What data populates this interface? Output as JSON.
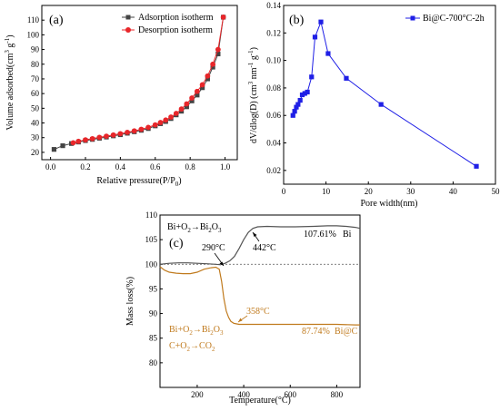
{
  "chart_data": [
    {
      "type": "line",
      "panel_label": "(a)",
      "xlabel": "Relative pressure(P/P",
      "xlabel_sub": "0",
      "xlabel_end": ")",
      "ylabel": "Volume adsorbed(cm",
      "ylabel_sup1": "3",
      "ylabel_mid": " g",
      "ylabel_sup2": "-1",
      "ylabel_end": ")",
      "xlim": [
        -0.05,
        1.07
      ],
      "ylim": [
        15,
        120
      ],
      "xticks": [
        "0.0",
        "0.2",
        "0.4",
        "0.6",
        "0.8",
        "1.0"
      ],
      "xtick_values": [
        0.0,
        0.2,
        0.4,
        0.6,
        0.8,
        1.0
      ],
      "yticks": [
        "20",
        "30",
        "40",
        "50",
        "60",
        "70",
        "80",
        "90",
        "100",
        "110"
      ],
      "ytick_values": [
        20,
        30,
        40,
        50,
        60,
        70,
        80,
        90,
        100,
        110
      ],
      "legend": "top-left",
      "series": [
        {
          "name": "Adsorption isotherm",
          "color": "#444444",
          "marker": "square",
          "x": [
            0.02,
            0.07,
            0.12,
            0.16,
            0.2,
            0.24,
            0.28,
            0.32,
            0.36,
            0.4,
            0.44,
            0.48,
            0.52,
            0.56,
            0.6,
            0.63,
            0.66,
            0.69,
            0.72,
            0.75,
            0.78,
            0.81,
            0.84,
            0.87,
            0.9,
            0.93,
            0.96,
            0.99
          ],
          "y": [
            22,
            24.5,
            26,
            27,
            28,
            28.8,
            29.6,
            30.4,
            31.2,
            32,
            33,
            34,
            35,
            36.2,
            38,
            39.5,
            41,
            43,
            45.5,
            48,
            51,
            55,
            59,
            64,
            70,
            78,
            87,
            112
          ]
        },
        {
          "name": "Desorption isotherm",
          "color": "#e8262a",
          "marker": "circle",
          "x": [
            0.13,
            0.16,
            0.2,
            0.24,
            0.28,
            0.32,
            0.36,
            0.4,
            0.44,
            0.48,
            0.52,
            0.56,
            0.6,
            0.63,
            0.66,
            0.69,
            0.72,
            0.75,
            0.78,
            0.81,
            0.84,
            0.87,
            0.9,
            0.93,
            0.96,
            0.99
          ],
          "y": [
            26.5,
            27.5,
            28.5,
            29.3,
            30.2,
            31,
            31.8,
            32.7,
            33.6,
            34.6,
            35.7,
            37,
            38.7,
            40.3,
            42,
            44,
            46.5,
            49.5,
            53,
            57,
            61.5,
            66,
            72,
            80,
            90,
            112
          ]
        }
      ]
    },
    {
      "type": "line",
      "panel_label": "(b)",
      "xlabel": "Pore width(nm)",
      "ylabel": "dV/dlog(D) (cm",
      "ylabel_sup1": "3",
      "ylabel_mid": " nm",
      "ylabel_sup2": "-1",
      "ylabel_mid2": " g",
      "ylabel_sup3": "-1",
      "ylabel_end": ")",
      "xlim": [
        0,
        50
      ],
      "ylim": [
        0.01,
        0.14
      ],
      "xticks": [
        "0",
        "10",
        "20",
        "30",
        "40",
        "50"
      ],
      "xtick_values": [
        0,
        10,
        20,
        30,
        40,
        50
      ],
      "yticks": [
        "0.02",
        "0.04",
        "0.06",
        "0.08",
        "0.10",
        "0.12",
        "0.14"
      ],
      "ytick_values": [
        0.02,
        0.04,
        0.06,
        0.08,
        0.1,
        0.12,
        0.14
      ],
      "legend": "top-right",
      "series": [
        {
          "name": "Bi@C-700°C-2h",
          "color": "#1f1fe6",
          "marker": "square",
          "x": [
            2.2,
            2.6,
            3.0,
            3.4,
            3.9,
            4.4,
            5.0,
            5.6,
            6.6,
            7.4,
            8.8,
            10.5,
            14.8,
            23.0,
            45.5
          ],
          "y": [
            0.06,
            0.063,
            0.066,
            0.068,
            0.071,
            0.075,
            0.076,
            0.077,
            0.088,
            0.117,
            0.128,
            0.105,
            0.087,
            0.068,
            0.023
          ]
        }
      ]
    },
    {
      "type": "line",
      "panel_label": "(c)",
      "xlabel": "Temperature(°C)",
      "ylabel": "Mass loss(%)",
      "xlim": [
        40,
        900
      ],
      "ylim": [
        75,
        110
      ],
      "xticks": [
        "200",
        "400",
        "600",
        "800"
      ],
      "xtick_values": [
        200,
        400,
        600,
        800
      ],
      "yticks": [
        "80",
        "85",
        "90",
        "95",
        "100",
        "105",
        "110"
      ],
      "ytick_values": [
        80,
        85,
        90,
        95,
        100,
        105,
        110
      ],
      "reference_line": 100,
      "series": [
        {
          "name": "Bi",
          "color": "#555555",
          "x": [
            40,
            80,
            120,
            160,
            200,
            240,
            280,
            300,
            320,
            340,
            360,
            380,
            400,
            420,
            440,
            460,
            500,
            560,
            620,
            700,
            760,
            800,
            840,
            880,
            900
          ],
          "y": [
            100,
            100.2,
            100.3,
            100.3,
            100.2,
            100.1,
            100,
            99.9,
            100.2,
            100.7,
            101.6,
            103.2,
            105,
            106.5,
            107.3,
            107.6,
            107.7,
            107.6,
            107.6,
            107.7,
            107.8,
            107.8,
            107.7,
            107.5,
            107.3
          ]
        },
        {
          "name": "Bi@C",
          "color": "#c07a1d",
          "x": [
            40,
            60,
            80,
            110,
            140,
            170,
            200,
            230,
            260,
            280,
            295,
            305,
            315,
            325,
            335,
            345,
            358,
            380,
            420,
            500,
            600,
            700,
            800,
            880,
            900
          ],
          "y": [
            99.5,
            98.8,
            98.4,
            98.2,
            98.1,
            98.1,
            98.4,
            99.0,
            99.3,
            99.4,
            99.0,
            96.5,
            93.0,
            90.5,
            89.2,
            88.4,
            88.0,
            87.8,
            87.8,
            87.8,
            87.8,
            87.8,
            87.8,
            87.7,
            87.7
          ]
        }
      ],
      "annotations": {
        "eq_bi_1": "Bi+O",
        "eq_bi_1_sub": "2",
        "eq_bi_1_arrow": "→Bi",
        "eq_bi_1_sub2": "2",
        "eq_bi_1_end": "O",
        "eq_bi_1_sub3": "3",
        "t290": "290°C",
        "t442": "442°C",
        "t358": "358°C",
        "bi_pct": "107.61%",
        "bi_name": "Bi",
        "bic_pct": "87.74%",
        "bic_name": "Bi@C",
        "eq_bic_1": "Bi+O",
        "eq_bic_1_sub": "2",
        "eq_bic_1_arrow": "→Bi",
        "eq_bic_1_sub2": "2",
        "eq_bic_1_end": "O",
        "eq_bic_1_sub3": "3",
        "eq_bic_2": "C+O",
        "eq_bic_2_sub": "2",
        "eq_bic_2_arrow": "→CO",
        "eq_bic_2_sub2": "2"
      }
    }
  ]
}
